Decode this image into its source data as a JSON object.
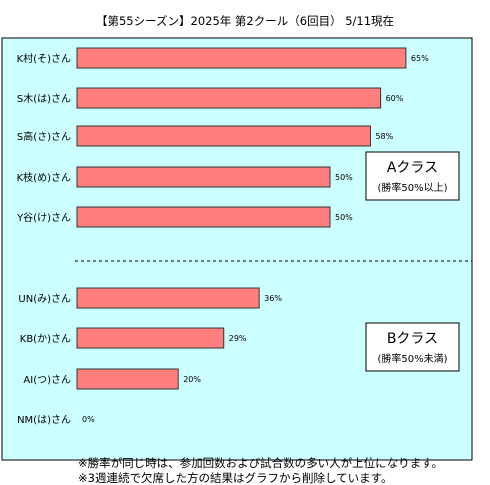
{
  "title": "",
  "subtitle": "【第55シーズン】2025年 第2クール（6回目） 5/11現在",
  "colors": {
    "plot_background": "#CCFFFF",
    "bar_fill": "#FF7F7F",
    "bar_stroke": "#333333",
    "box_fill": "#FFFFFF"
  },
  "chart_data": {
    "type": "bar",
    "orientation": "horizontal",
    "unit": "%",
    "xlim": [
      0,
      80
    ],
    "grid": false,
    "categories": [
      "K村(そ)さん",
      "S木(は)さん",
      "S高(さ)さん",
      "K枝(め)さん",
      "Y谷(け)さん",
      "UN(み)さん",
      "KB(か)さん",
      "AI(つ)さん",
      "NM(は)さん"
    ],
    "values": [
      65,
      60,
      58,
      50,
      50,
      36,
      29,
      20,
      0
    ],
    "value_labels": [
      "65%",
      "60%",
      "58%",
      "50%",
      "50%",
      "36%",
      "29%",
      "20%",
      "0%"
    ],
    "groups": [
      {
        "label": "Aクラス",
        "sublabel": "(勝率50%以上)",
        "members": 5
      },
      {
        "label": "Bクラス",
        "sublabel": "(勝率50%未満)",
        "members": 4
      }
    ]
  },
  "footnotes": [
    "※勝率が同じ時は、参加回数および試合数の多い人が上位になります。",
    "※3週連続で欠席した方の結果はグラフから削除しています。"
  ]
}
